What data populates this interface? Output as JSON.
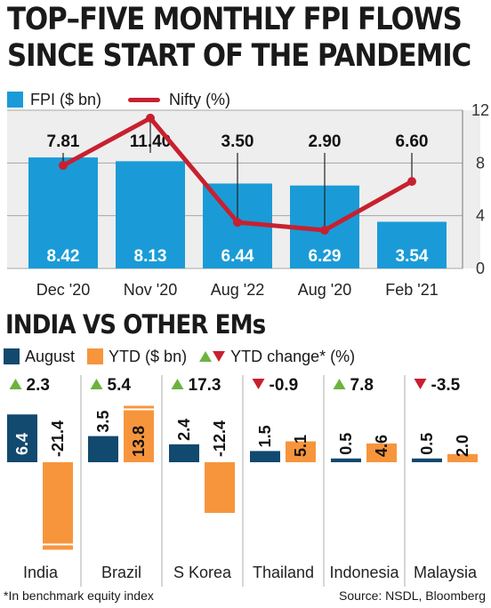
{
  "title_line1": "TOP–FIVE MONTHLY FPI FLOWS",
  "title_line2": "SINCE START OF THE PANDEMIC",
  "subtitle": "INDIA VS OTHER EMs",
  "legend1": {
    "fpi": "FPI ($ bn)",
    "nifty": "Nifty (%)"
  },
  "legend2": {
    "august": "August",
    "ytd": "YTD ($ bn)",
    "ytd_change": "YTD change* (%)"
  },
  "footnote": "*In benchmark equity index",
  "source": "Source: NSDL, Bloomberg",
  "colors": {
    "fpi": "#1a9bd7",
    "nifty": "#c8202f",
    "august": "#11496f",
    "ytd": "#f7953d",
    "up": "#6cb33f",
    "down": "#c8202f"
  },
  "chart_data": [
    {
      "type": "bar",
      "categories": [
        "Dec '20",
        "Nov '20",
        "Aug '22",
        "Aug '20",
        "Feb '21"
      ],
      "series": [
        {
          "name": "FPI ($ bn)",
          "type": "bar",
          "values": [
            8.42,
            8.13,
            6.44,
            6.29,
            3.54
          ],
          "labels": [
            "8.42",
            "8.13",
            "6.44",
            "6.29",
            "3.54"
          ]
        },
        {
          "name": "Nifty (%)",
          "type": "line",
          "values": [
            7.81,
            11.4,
            3.5,
            2.9,
            6.6
          ],
          "labels": [
            "7.81",
            "11.40",
            "3.50",
            "2.90",
            "6.60"
          ]
        }
      ],
      "yticks": [
        0,
        4,
        8,
        12
      ],
      "ylim": [
        0,
        12
      ]
    },
    {
      "type": "bar",
      "categories": [
        "India",
        "Brazil",
        "S Korea",
        "Thailand",
        "Indonesia",
        "Malaysia"
      ],
      "series": [
        {
          "name": "August",
          "values": [
            6.4,
            3.5,
            2.4,
            1.5,
            0.5,
            0.5
          ],
          "labels": [
            "6.4",
            "3.5",
            "2.4",
            "1.5",
            "0.5",
            "0.5"
          ]
        },
        {
          "name": "YTD ($ bn)",
          "values": [
            -21.4,
            13.8,
            -12.4,
            5.1,
            4.6,
            2.0
          ],
          "labels": [
            "-21.4",
            "13.8",
            "-12.4",
            "5.1",
            "4.6",
            "2.0"
          ]
        }
      ],
      "ytd_change": {
        "values": [
          2.3,
          5.4,
          17.3,
          -0.9,
          7.8,
          -3.5
        ],
        "labels": [
          "2.3",
          "5.4",
          "17.3",
          "-0.9",
          "7.8",
          "-3.5"
        ],
        "direction": [
          "up",
          "up",
          "up",
          "down",
          "up",
          "down"
        ]
      }
    }
  ]
}
